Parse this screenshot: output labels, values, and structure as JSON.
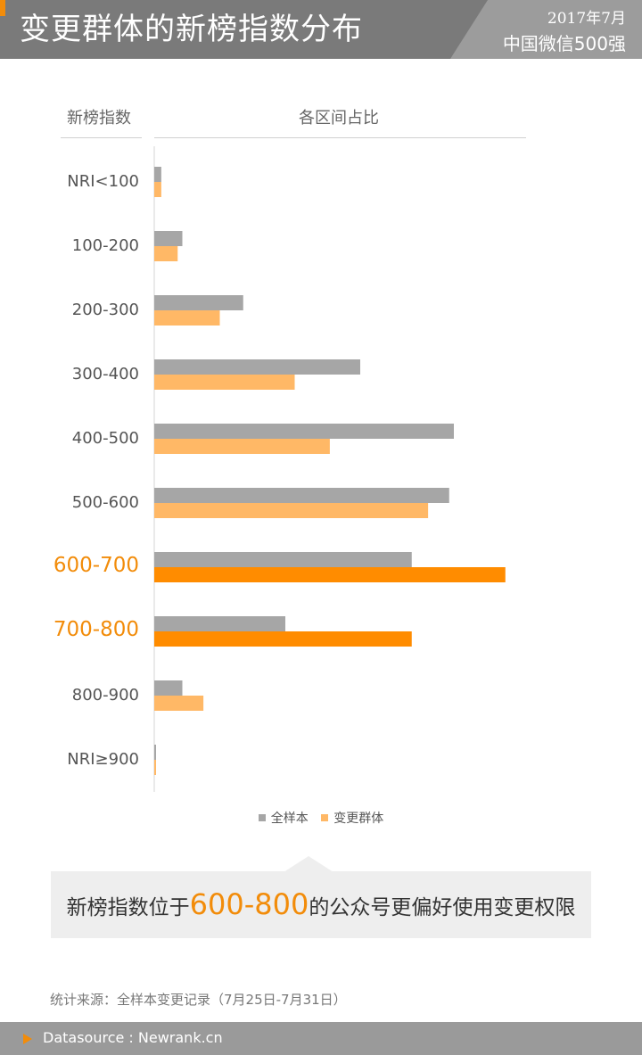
{
  "header": {
    "title": "变更群体的新榜指数分布",
    "date": "2017年7月",
    "subtitle": "中国微信500强"
  },
  "columns": {
    "left": "新榜指数",
    "right": "各区间占比"
  },
  "chart_data": {
    "type": "bar",
    "orientation": "horizontal",
    "categories": [
      "NRI<100",
      "100-200",
      "200-300",
      "300-400",
      "400-500",
      "500-600",
      "600-700",
      "700-800",
      "800-900",
      "NRI≥900"
    ],
    "highlighted_categories": [
      "600-700",
      "700-800"
    ],
    "series": [
      {
        "name": "全样本",
        "color": "#a6a6a6",
        "values": [
          0.3,
          1.2,
          3.8,
          8.8,
          12.8,
          12.6,
          11.0,
          5.6,
          1.2,
          0.05
        ]
      },
      {
        "name": "变更群体",
        "color": "#ffb866",
        "highlight_color": "#ff8c00",
        "values": [
          0.3,
          1.0,
          2.8,
          6.0,
          7.5,
          11.7,
          15.0,
          11.0,
          2.1,
          0.05
        ]
      }
    ],
    "xlim": [
      0,
      16
    ],
    "grid": false,
    "legend": "bottom"
  },
  "callout": {
    "before": "新榜指数位于",
    "highlight": "600-800",
    "after": "的公众号更偏好使用变更权限"
  },
  "source_note": "统计来源：全样本变更记录（7月25日-7月31日）",
  "footer": {
    "text": "Datasource : Newrank.cn"
  },
  "colors": {
    "accent": "#f28c0a",
    "header_bg": "#7a7a7a"
  }
}
